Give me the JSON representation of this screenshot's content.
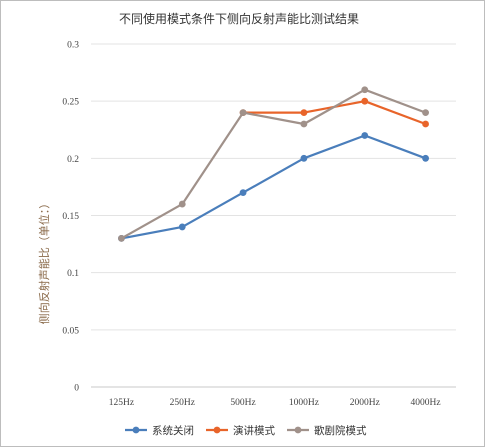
{
  "chart_data": {
    "type": "line",
    "title": "不同使用模式条件下侧向反射声能比测试结果",
    "xlabel": "",
    "ylabel": "侧向反射声能比（单位：）",
    "categories": [
      "125Hz",
      "250Hz",
      "500Hz",
      "1000Hz",
      "2000Hz",
      "4000Hz"
    ],
    "ylim": [
      0,
      0.3
    ],
    "yticks": [
      "0",
      "0.05",
      "0.1",
      "0.15",
      "0.2",
      "0.25",
      "0.3"
    ],
    "ytick_values": [
      0,
      0.05,
      0.1,
      0.15,
      0.2,
      0.25,
      0.3
    ],
    "grid": true,
    "legend_position": "bottom",
    "series": [
      {
        "name": "系统关闭",
        "color": "#4a7ebb",
        "values": [
          0.13,
          0.14,
          0.17,
          0.2,
          0.22,
          0.2
        ]
      },
      {
        "name": "演讲模式",
        "color": "#e8642a",
        "values": [
          null,
          null,
          0.24,
          0.24,
          0.25,
          0.23
        ]
      },
      {
        "name": "歌剧院模式",
        "color": "#a0918a",
        "values": [
          0.13,
          0.16,
          0.24,
          0.23,
          0.26,
          0.24
        ]
      }
    ]
  }
}
